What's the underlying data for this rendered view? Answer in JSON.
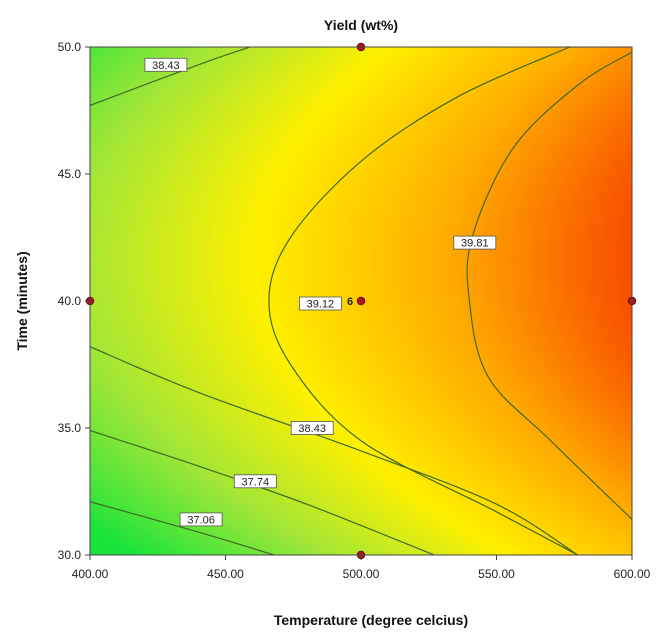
{
  "chart_data": {
    "type": "contour",
    "title": "Yield (wt%)",
    "xlabel": "Temperature (degree celcius)",
    "ylabel": "Time (minutes)",
    "xlim": [
      400,
      600
    ],
    "ylim": [
      30,
      50
    ],
    "x_ticks": [
      "400.00",
      "450.00",
      "500.00",
      "550.00",
      "600.00"
    ],
    "y_ticks": [
      "30.0",
      "35.0",
      "40.0",
      "45.0",
      "50.0"
    ],
    "x_tick_values": [
      400,
      450,
      500,
      550,
      600
    ],
    "y_tick_values": [
      30,
      35,
      40,
      45,
      50
    ],
    "color_scale": [
      "#19e43a",
      "#9fe638",
      "#fff000",
      "#ffae00",
      "#f84d00"
    ],
    "contours": [
      {
        "label": "37.06",
        "label_at": [
          441,
          31.4
        ],
        "points": [
          [
            400,
            32.1
          ],
          [
            440,
            30.9
          ],
          [
            468,
            30.0
          ]
        ]
      },
      {
        "label": "37.74",
        "label_at": [
          461,
          32.9
        ],
        "points": [
          [
            400,
            34.9
          ],
          [
            440,
            33.5
          ],
          [
            480,
            32.0
          ],
          [
            527,
            30.0
          ]
        ]
      },
      {
        "label": "38.43",
        "label_at": [
          482,
          35.0
        ],
        "points": [
          [
            400,
            38.2
          ],
          [
            440,
            36.4
          ],
          [
            500,
            34.1
          ],
          [
            550,
            32.0
          ],
          [
            580,
            30.0
          ]
        ]
      },
      {
        "label": "38.43",
        "label_at": [
          428,
          49.3
        ],
        "points": [
          [
            400,
            47.7
          ],
          [
            440,
            49.3
          ],
          [
            459,
            50.0
          ]
        ]
      },
      {
        "label": "39.12",
        "label_at": [
          485,
          39.9
        ],
        "points": [
          [
            577,
            50.0
          ],
          [
            535,
            48.0
          ],
          [
            500,
            45.5
          ],
          [
            474,
            42.5
          ],
          [
            466,
            40.0
          ],
          [
            474,
            37.5
          ],
          [
            500,
            34.5
          ],
          [
            550,
            31.7
          ],
          [
            580,
            30.0
          ]
        ]
      },
      {
        "label": "39.81",
        "label_at": [
          542,
          42.3
        ],
        "points": [
          [
            600,
            49.8
          ],
          [
            580,
            48.5
          ],
          [
            556,
            46.0
          ],
          [
            541,
            42.5
          ],
          [
            540,
            40.0
          ],
          [
            547,
            37.0
          ],
          [
            570,
            34.5
          ],
          [
            600,
            31.4
          ]
        ]
      }
    ],
    "design_points": [
      [
        400,
        40
      ],
      [
        500,
        40
      ],
      [
        500,
        50
      ],
      [
        500,
        30
      ],
      [
        600,
        40
      ]
    ],
    "center_point_label": "6"
  }
}
